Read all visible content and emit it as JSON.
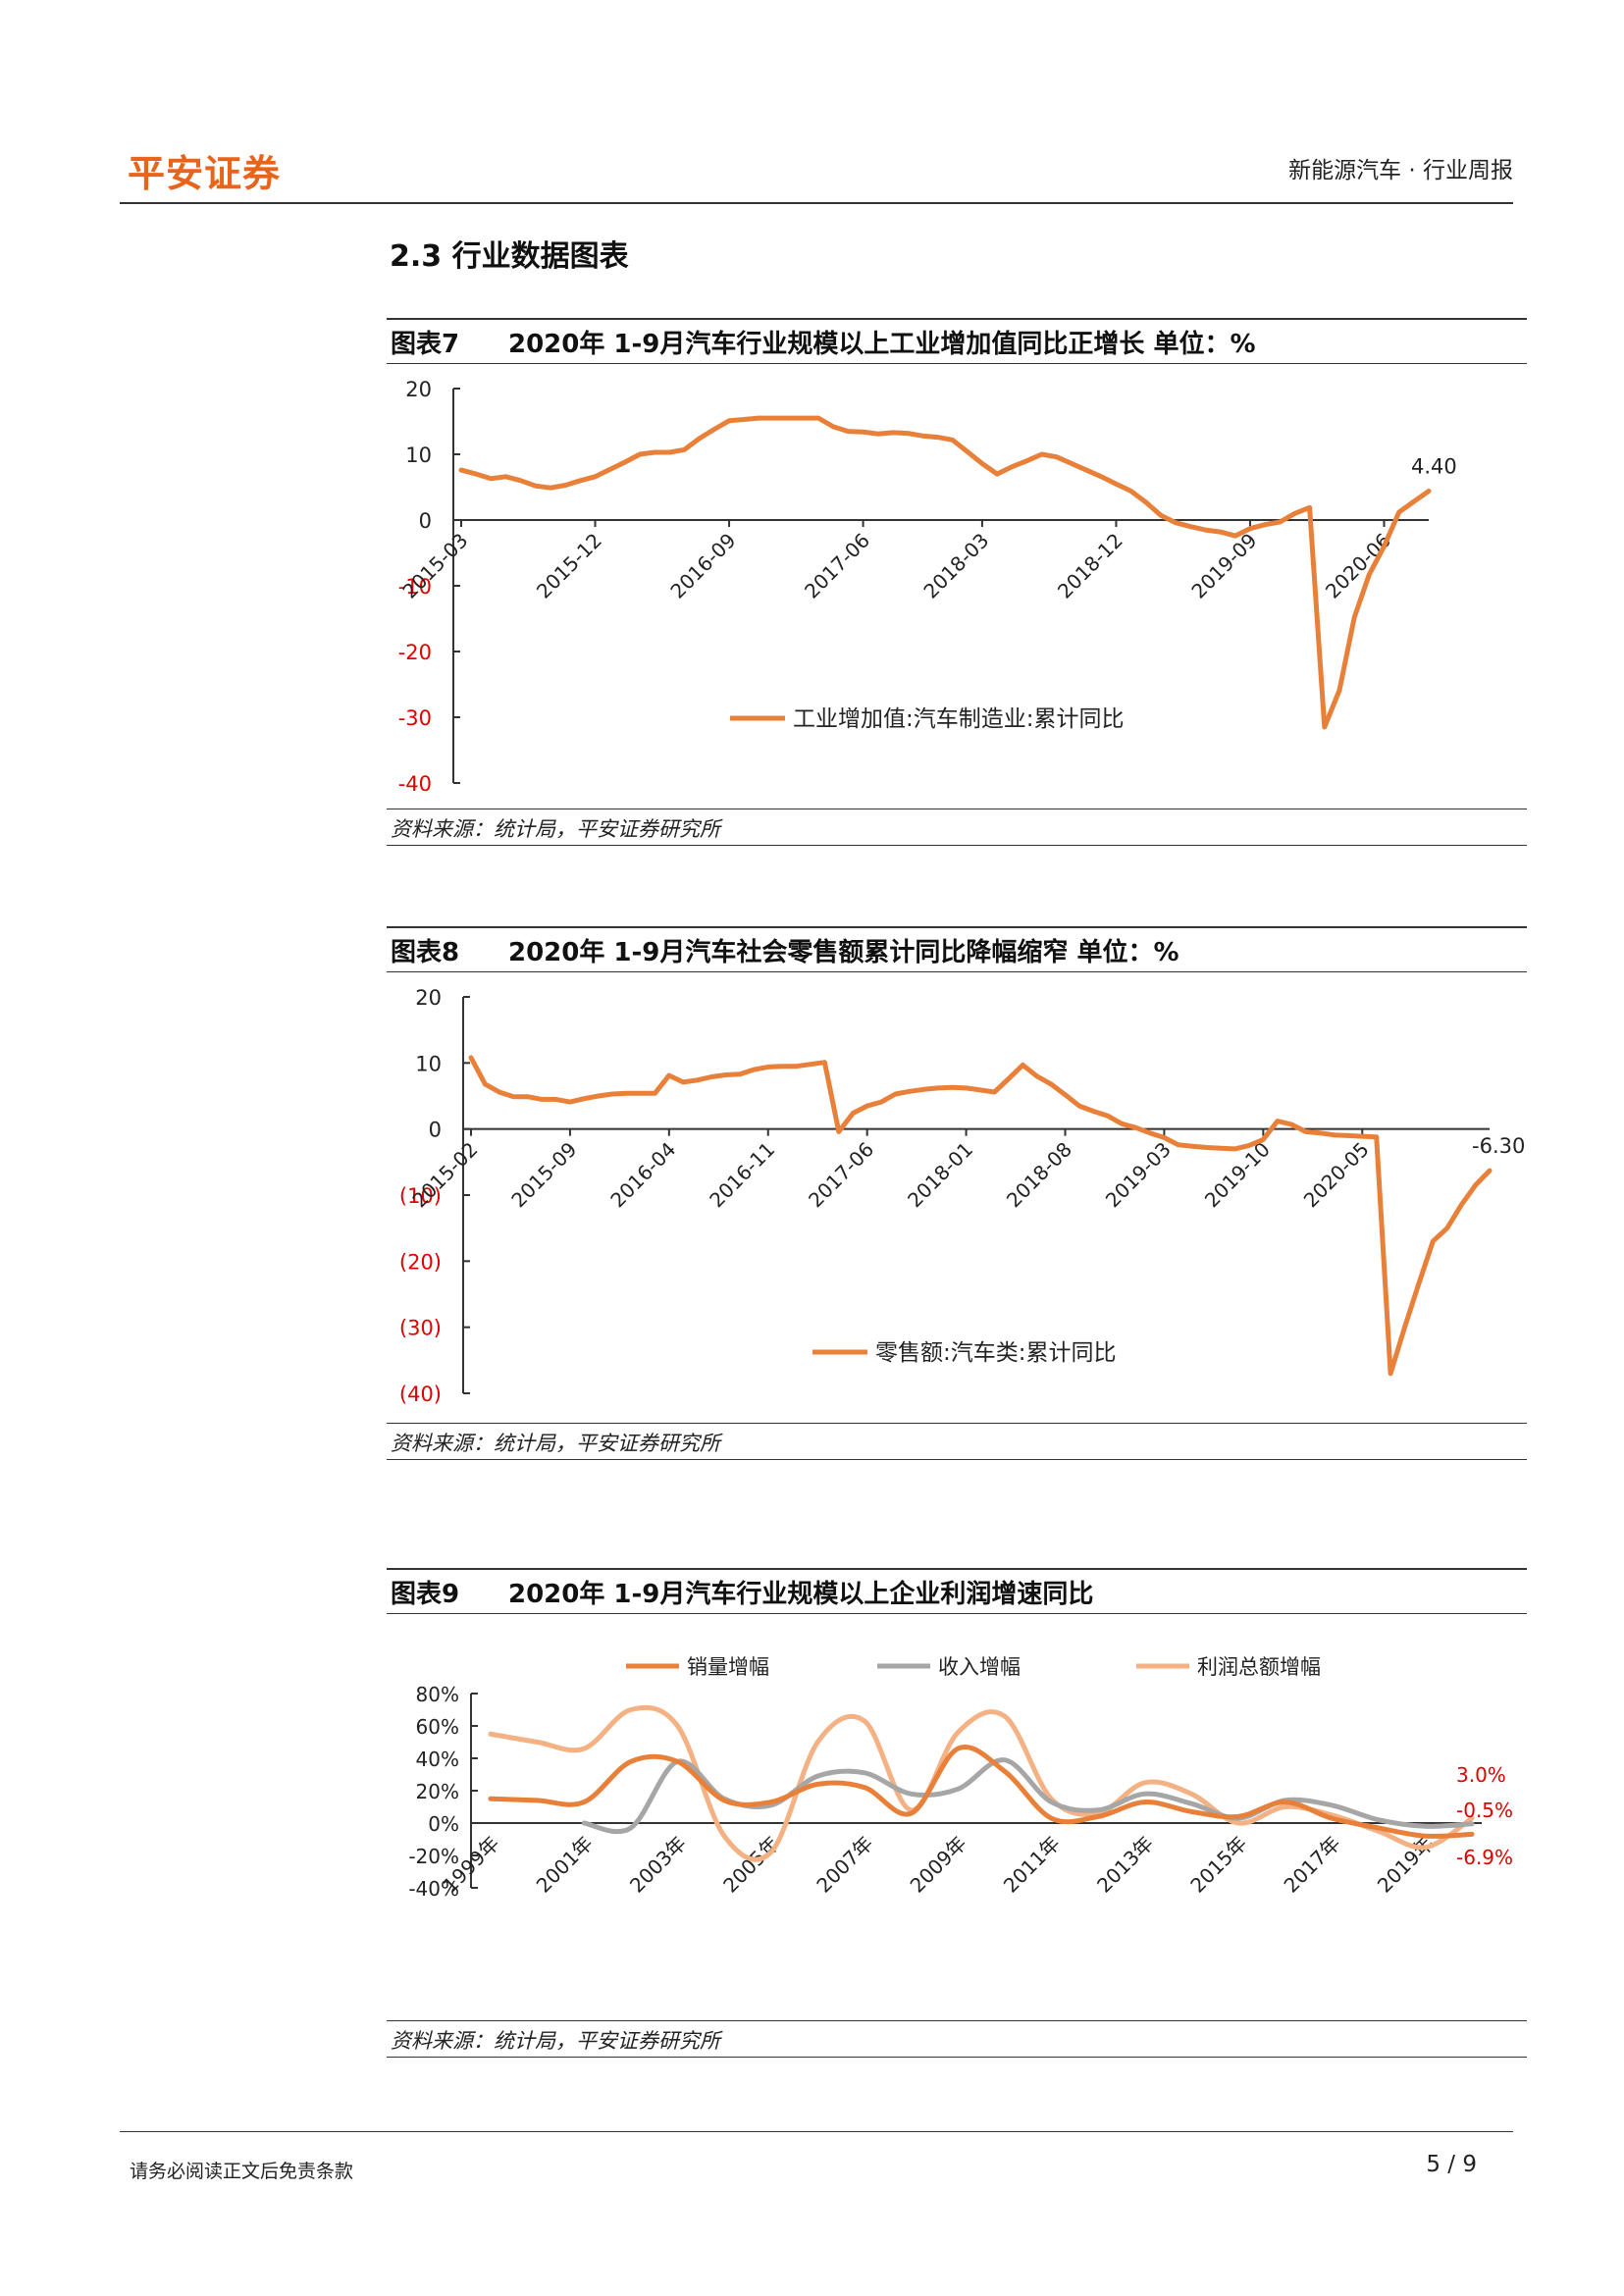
{
  "header": {
    "brand": "平安证券",
    "report": "新能源汽车 · 行业周报"
  },
  "section_title": "2.3 行业数据图表",
  "figures": [
    {
      "label": "图表7",
      "title": "2020年 1-9月汽车行业规模以上工业增加值同比正增长   单位：%",
      "source": "资料来源：统计局，平安证券研究所"
    },
    {
      "label": "图表8",
      "title": "2020年 1-9月汽车社会零售额累计同比降幅缩窄   单位：%",
      "source": "资料来源：统计局，平安证券研究所"
    },
    {
      "label": "图表9",
      "title": "2020年 1-9月汽车行业规模以上企业利润增速同比",
      "source": "资料来源：统计局，平安证券研究所"
    }
  ],
  "colors": {
    "orange": "#e8803a",
    "gray": "#a6a6a6",
    "peach": "#f4b183",
    "red": "#e00000",
    "brand": "#e8641a"
  },
  "chart_data": [
    {
      "type": "line",
      "ylim": [
        -40,
        20
      ],
      "yticks": [
        20,
        10,
        0,
        -10,
        -20,
        -30,
        -40
      ],
      "ytick_labels": [
        "20",
        "10",
        "0",
        "-10",
        "-20",
        "-30",
        "-40"
      ],
      "negative_tick_color": "red",
      "x_tick_labels": [
        "2015-03",
        "2015-12",
        "2016-09",
        "2017-06",
        "2018-03",
        "2018-12",
        "2019-09",
        "2020-06"
      ],
      "series": [
        {
          "name": "工业增加值:汽车制造业:累计同比",
          "values": [
            7.6,
            7.0,
            6.3,
            6.6,
            6.0,
            5.2,
            4.9,
            5.3,
            6.0,
            6.6,
            7.7,
            8.8,
            10.0,
            10.3,
            10.3,
            10.7,
            12.4,
            13.8,
            15.1,
            15.3,
            15.5,
            15.5,
            15.5,
            15.5,
            15.5,
            14.2,
            13.5,
            13.4,
            13.1,
            13.3,
            13.2,
            12.8,
            12.6,
            12.2,
            10.4,
            8.6,
            7.0,
            8.1,
            9.0,
            10.0,
            9.6,
            8.6,
            7.6,
            6.6,
            5.5,
            4.4,
            2.7,
            0.7,
            -0.4,
            -1.0,
            -1.5,
            -1.8,
            -2.4,
            -1.3,
            -0.7,
            -0.3,
            1.0,
            1.9,
            -31.5,
            -25.9,
            -14.8,
            -8.3,
            -4.0,
            1.2,
            2.8,
            4.4
          ],
          "end_label": "4.40"
        }
      ]
    },
    {
      "type": "line",
      "ylim": [
        -40,
        20
      ],
      "yticks": [
        20,
        10,
        0,
        -10,
        -20,
        -30,
        -40
      ],
      "ytick_labels": [
        "20",
        "10",
        "0",
        "(10)",
        "(20)",
        "(30)",
        "(40)"
      ],
      "negative_tick_color": "red",
      "x_tick_labels": [
        "2015-02",
        "2015-09",
        "2016-04",
        "2016-11",
        "2017-06",
        "2018-01",
        "2018-08",
        "2019-03",
        "2019-10",
        "2020-05"
      ],
      "series": [
        {
          "name": "零售额:汽车类:累计同比",
          "values": [
            10.8,
            6.8,
            5.6,
            4.9,
            4.9,
            4.5,
            4.5,
            4.1,
            4.6,
            5.0,
            5.3,
            5.4,
            5.4,
            5.4,
            8.1,
            7.1,
            7.4,
            7.9,
            8.2,
            8.3,
            9.0,
            9.4,
            9.5,
            9.5,
            9.8,
            10.1,
            -0.4,
            2.4,
            3.5,
            4.1,
            5.3,
            5.7,
            6.0,
            6.2,
            6.3,
            6.2,
            5.9,
            5.6,
            7.6,
            9.7,
            8.0,
            6.8,
            5.2,
            3.5,
            2.7,
            2.0,
            0.8,
            0.2,
            -0.6,
            -1.3,
            -2.4,
            -2.6,
            -2.8,
            -2.9,
            -3.0,
            -2.5,
            -1.6,
            1.2,
            0.7,
            -0.4,
            -0.6,
            -0.9,
            -1.0,
            -1.1,
            -1.2,
            -37.0,
            -30.0,
            -23.4,
            -17.0,
            -15.0,
            -11.5,
            -8.5,
            -6.3
          ],
          "end_label": "-6.30"
        }
      ]
    },
    {
      "type": "line",
      "ylim": [
        -40,
        80
      ],
      "yticks": [
        80,
        60,
        40,
        20,
        0,
        -20,
        -40
      ],
      "ytick_labels": [
        "80%",
        "60%",
        "40%",
        "20%",
        "0%",
        "-20%",
        "-40%"
      ],
      "x_tick_labels": [
        "1999年",
        "2001年",
        "2003年",
        "2005年",
        "2007年",
        "2009年",
        "2011年",
        "2013年",
        "2015年",
        "2017年",
        "2019年"
      ],
      "x": [
        "1999年",
        "2000年",
        "2001年",
        "2002年",
        "2003年",
        "2004年",
        "2005年",
        "2006年",
        "2007年",
        "2008年",
        "2009年",
        "2010年",
        "2011年",
        "2012年",
        "2013年",
        "2014年",
        "2015年",
        "2016年",
        "2017年",
        "2018年",
        "2019年",
        "2020年"
      ],
      "legend_position": "top",
      "series": [
        {
          "name": "销量增幅",
          "values": [
            15,
            14,
            13,
            38,
            38,
            14,
            13,
            24,
            22,
            6,
            46,
            32,
            3,
            4,
            13,
            7,
            4,
            13,
            3,
            -3,
            -8,
            -6.9
          ]
        },
        {
          "name": "收入增幅",
          "values": [
            null,
            null,
            0,
            -3,
            38,
            15,
            11,
            29,
            31,
            18,
            21,
            39,
            13,
            8,
            18,
            12,
            3,
            14,
            11,
            2,
            -2,
            -0.5
          ]
        },
        {
          "name": "利润总额增幅",
          "values": [
            55,
            50,
            46,
            70,
            60,
            -8,
            -18,
            50,
            63,
            8,
            56,
            66,
            15,
            6,
            25,
            18,
            0,
            10,
            5,
            -5,
            -15,
            3.0
          ]
        }
      ],
      "end_labels": [
        "3.0%",
        "-0.5%",
        "-6.9%"
      ]
    }
  ]
}
